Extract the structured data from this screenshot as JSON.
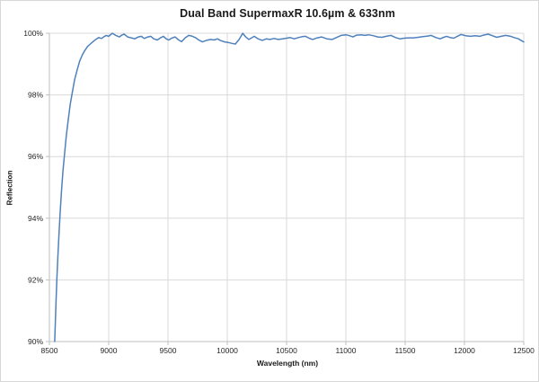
{
  "chart_data": {
    "type": "line",
    "title": "Dual Band SupermaxR 10.6µm & 633nm",
    "xlabel": "Wavelength (nm)",
    "ylabel": "Reflection",
    "xlim": [
      8500,
      12500
    ],
    "ylim": [
      90,
      100
    ],
    "x_ticks": [
      8500,
      9000,
      9500,
      10000,
      10500,
      11000,
      11500,
      12000,
      12500
    ],
    "x_tick_labels": [
      "8500",
      "9000",
      "9500",
      "10000",
      "10500",
      "11000",
      "11500",
      "12000",
      "12500"
    ],
    "y_ticks": [
      90,
      92,
      94,
      96,
      98,
      100
    ],
    "y_tick_labels": [
      "90%",
      "92%",
      "94%",
      "96%",
      "98%",
      "100%"
    ],
    "grid": true,
    "legend": "none",
    "colors": {
      "line": "#4F81BD",
      "gridline": "#D9D9D9",
      "axis": "#BFBFBF",
      "text": "#262626"
    },
    "series": [
      {
        "name": "Reflection",
        "points": [
          [
            8545,
            90.0
          ],
          [
            8551,
            90.7
          ],
          [
            8557,
            91.4
          ],
          [
            8564,
            92.1
          ],
          [
            8572,
            92.8
          ],
          [
            8581,
            93.5
          ],
          [
            8591,
            94.2
          ],
          [
            8602,
            94.9
          ],
          [
            8614,
            95.5
          ],
          [
            8628,
            96.1
          ],
          [
            8643,
            96.7
          ],
          [
            8659,
            97.2
          ],
          [
            8676,
            97.7
          ],
          [
            8694,
            98.1
          ],
          [
            8713,
            98.5
          ],
          [
            8733,
            98.8
          ],
          [
            8755,
            99.1
          ],
          [
            8778,
            99.3
          ],
          [
            8800,
            99.45
          ],
          [
            8822,
            99.57
          ],
          [
            8845,
            99.65
          ],
          [
            8868,
            99.73
          ],
          [
            8890,
            99.8
          ],
          [
            8917,
            99.86
          ],
          [
            8940,
            99.83
          ],
          [
            8960,
            99.89
          ],
          [
            8980,
            99.93
          ],
          [
            9000,
            99.9
          ],
          [
            9030,
            100.0
          ],
          [
            9060,
            99.93
          ],
          [
            9090,
            99.88
          ],
          [
            9110,
            99.94
          ],
          [
            9130,
            99.97
          ],
          [
            9160,
            99.88
          ],
          [
            9190,
            99.85
          ],
          [
            9220,
            99.82
          ],
          [
            9250,
            99.88
          ],
          [
            9275,
            99.9
          ],
          [
            9300,
            99.83
          ],
          [
            9330,
            99.88
          ],
          [
            9355,
            99.9
          ],
          [
            9380,
            99.82
          ],
          [
            9410,
            99.78
          ],
          [
            9440,
            99.86
          ],
          [
            9462,
            99.9
          ],
          [
            9485,
            99.82
          ],
          [
            9507,
            99.78
          ],
          [
            9530,
            99.84
          ],
          [
            9560,
            99.88
          ],
          [
            9590,
            99.78
          ],
          [
            9615,
            99.73
          ],
          [
            9645,
            99.85
          ],
          [
            9675,
            99.93
          ],
          [
            9700,
            99.91
          ],
          [
            9730,
            99.86
          ],
          [
            9760,
            99.78
          ],
          [
            9790,
            99.72
          ],
          [
            9825,
            99.77
          ],
          [
            9860,
            99.8
          ],
          [
            9890,
            99.78
          ],
          [
            9917,
            99.82
          ],
          [
            9945,
            99.76
          ],
          [
            9977,
            99.72
          ],
          [
            10010,
            99.7
          ],
          [
            10040,
            99.67
          ],
          [
            10068,
            99.65
          ],
          [
            10100,
            99.8
          ],
          [
            10130,
            100.0
          ],
          [
            10155,
            99.88
          ],
          [
            10182,
            99.8
          ],
          [
            10205,
            99.85
          ],
          [
            10227,
            99.9
          ],
          [
            10260,
            99.82
          ],
          [
            10295,
            99.77
          ],
          [
            10330,
            99.82
          ],
          [
            10360,
            99.8
          ],
          [
            10395,
            99.83
          ],
          [
            10430,
            99.8
          ],
          [
            10465,
            99.82
          ],
          [
            10500,
            99.84
          ],
          [
            10530,
            99.86
          ],
          [
            10565,
            99.82
          ],
          [
            10600,
            99.86
          ],
          [
            10630,
            99.89
          ],
          [
            10660,
            99.9
          ],
          [
            10690,
            99.84
          ],
          [
            10720,
            99.8
          ],
          [
            10760,
            99.85
          ],
          [
            10795,
            99.88
          ],
          [
            10840,
            99.82
          ],
          [
            10885,
            99.8
          ],
          [
            10920,
            99.86
          ],
          [
            10960,
            99.93
          ],
          [
            11000,
            99.95
          ],
          [
            11030,
            99.92
          ],
          [
            11060,
            99.88
          ],
          [
            11090,
            99.94
          ],
          [
            11130,
            99.95
          ],
          [
            11160,
            99.93
          ],
          [
            11190,
            99.95
          ],
          [
            11230,
            99.92
          ],
          [
            11270,
            99.88
          ],
          [
            11305,
            99.87
          ],
          [
            11340,
            99.9
          ],
          [
            11380,
            99.93
          ],
          [
            11420,
            99.86
          ],
          [
            11455,
            99.82
          ],
          [
            11490,
            99.84
          ],
          [
            11530,
            99.85
          ],
          [
            11570,
            99.85
          ],
          [
            11610,
            99.87
          ],
          [
            11650,
            99.89
          ],
          [
            11690,
            99.91
          ],
          [
            11720,
            99.93
          ],
          [
            11760,
            99.86
          ],
          [
            11795,
            99.82
          ],
          [
            11825,
            99.87
          ],
          [
            11850,
            99.9
          ],
          [
            11880,
            99.86
          ],
          [
            11910,
            99.84
          ],
          [
            11940,
            99.9
          ],
          [
            11970,
            99.96
          ],
          [
            12010,
            99.92
          ],
          [
            12050,
            99.9
          ],
          [
            12090,
            99.92
          ],
          [
            12130,
            99.9
          ],
          [
            12160,
            99.94
          ],
          [
            12200,
            99.97
          ],
          [
            12235,
            99.92
          ],
          [
            12273,
            99.87
          ],
          [
            12310,
            99.9
          ],
          [
            12348,
            99.93
          ],
          [
            12390,
            99.9
          ],
          [
            12420,
            99.86
          ],
          [
            12455,
            99.82
          ],
          [
            12480,
            99.76
          ],
          [
            12500,
            99.72
          ]
        ]
      }
    ]
  }
}
